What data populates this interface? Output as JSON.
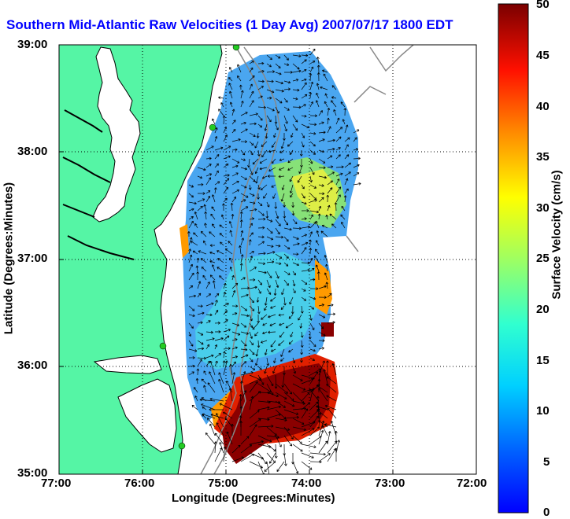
{
  "title": "Southern Mid-Atlantic Raw Velocities (1 Day Avg) 2007/07/17 1800 EDT",
  "x_axis": {
    "label": "Longitude (Degrees:Minutes)",
    "ticks": [
      "77:00",
      "76:00",
      "75:00",
      "74:00",
      "73:00",
      "72:00"
    ]
  },
  "y_axis": {
    "label": "Latitude (Degrees:Minutes)",
    "ticks": [
      "39:00",
      "38:00",
      "37:00",
      "36:00",
      "35:00"
    ]
  },
  "colorbar": {
    "label": "Surface Velocity (cm/s)",
    "ticks": [
      "50",
      "45",
      "40",
      "35",
      "30",
      "25",
      "20",
      "15",
      "10",
      "5",
      "0"
    ],
    "range": [
      0,
      50
    ],
    "colormap": "jet"
  },
  "colors": {
    "land": "#55f5a5",
    "title": "#0000ff",
    "grid": "#000000",
    "isobath": "#888888",
    "station": "#22cc22"
  },
  "icons": {
    "station_marker": "green-circle-icon",
    "vector": "arrow-icon"
  }
}
